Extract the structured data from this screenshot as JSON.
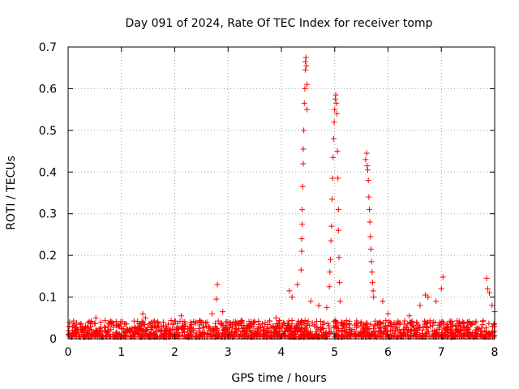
{
  "chart_data": {
    "type": "scatter",
    "title": "Day 091 of 2024, Rate Of TEC Index for receiver tomp",
    "xlabel": "GPS time / hours",
    "ylabel": "ROTI / TECUs",
    "xlim": [
      0,
      8
    ],
    "ylim": [
      0,
      0.7
    ],
    "grid": true,
    "x_ticks": [
      0,
      1,
      2,
      3,
      4,
      5,
      6,
      7,
      8
    ],
    "x_tick_labels": [
      "0",
      "1",
      "2",
      "3",
      "4",
      "5",
      "6",
      "7",
      "8"
    ],
    "y_ticks": [
      0,
      0.1,
      0.2,
      0.3,
      0.4,
      0.5,
      0.6,
      0.7
    ],
    "y_tick_labels": [
      "0",
      "0.1",
      "0.2",
      "0.3",
      "0.4",
      "0.5",
      "0.6",
      "0.7"
    ],
    "marker": "+",
    "marker_color": "#ff0000",
    "background_band": {
      "description": "dense cluster of low ROTI values across the whole day",
      "x_range": [
        0,
        8
      ],
      "typical_max": 0.04
    },
    "series": [
      {
        "name": "ROTI",
        "points": [
          [
            0.02,
            0.03
          ],
          [
            0.08,
            0.02
          ],
          [
            0.15,
            0.025
          ],
          [
            0.3,
            0.015
          ],
          [
            0.52,
            0.05
          ],
          [
            0.6,
            0.02
          ],
          [
            0.9,
            0.015
          ],
          [
            1.2,
            0.025
          ],
          [
            1.4,
            0.06
          ],
          [
            1.45,
            0.05
          ],
          [
            1.7,
            0.03
          ],
          [
            2.12,
            0.055
          ],
          [
            2.5,
            0.04
          ],
          [
            2.7,
            0.06
          ],
          [
            2.78,
            0.095
          ],
          [
            2.8,
            0.13
          ],
          [
            2.9,
            0.065
          ],
          [
            3.1,
            0.04
          ],
          [
            3.5,
            0.04
          ],
          [
            3.9,
            0.05
          ],
          [
            4.15,
            0.115
          ],
          [
            4.2,
            0.1
          ],
          [
            4.3,
            0.13
          ],
          [
            4.37,
            0.165
          ],
          [
            4.38,
            0.21
          ],
          [
            4.38,
            0.24
          ],
          [
            4.39,
            0.275
          ],
          [
            4.39,
            0.31
          ],
          [
            4.4,
            0.365
          ],
          [
            4.41,
            0.42
          ],
          [
            4.41,
            0.455
          ],
          [
            4.42,
            0.5
          ],
          [
            4.43,
            0.565
          ],
          [
            4.44,
            0.6
          ],
          [
            4.45,
            0.645
          ],
          [
            4.45,
            0.665
          ],
          [
            4.46,
            0.675
          ],
          [
            4.47,
            0.655
          ],
          [
            4.48,
            0.61
          ],
          [
            4.48,
            0.55
          ],
          [
            4.55,
            0.09
          ],
          [
            4.7,
            0.08
          ],
          [
            4.85,
            0.075
          ],
          [
            4.9,
            0.125
          ],
          [
            4.91,
            0.16
          ],
          [
            4.92,
            0.19
          ],
          [
            4.93,
            0.235
          ],
          [
            4.94,
            0.27
          ],
          [
            4.95,
            0.335
          ],
          [
            4.96,
            0.385
          ],
          [
            4.97,
            0.435
          ],
          [
            4.98,
            0.48
          ],
          [
            4.99,
            0.52
          ],
          [
            5.0,
            0.55
          ],
          [
            5.01,
            0.575
          ],
          [
            5.02,
            0.585
          ],
          [
            5.03,
            0.565
          ],
          [
            5.04,
            0.54
          ],
          [
            5.05,
            0.45
          ],
          [
            5.06,
            0.385
          ],
          [
            5.07,
            0.31
          ],
          [
            5.07,
            0.26
          ],
          [
            5.08,
            0.195
          ],
          [
            5.09,
            0.135
          ],
          [
            5.1,
            0.09
          ],
          [
            5.5,
            0.04
          ],
          [
            5.58,
            0.43
          ],
          [
            5.6,
            0.445
          ],
          [
            5.61,
            0.415
          ],
          [
            5.62,
            0.405
          ],
          [
            5.63,
            0.38
          ],
          [
            5.64,
            0.34
          ],
          [
            5.65,
            0.31
          ],
          [
            5.66,
            0.28
          ],
          [
            5.67,
            0.245
          ],
          [
            5.68,
            0.215
          ],
          [
            5.69,
            0.185
          ],
          [
            5.7,
            0.16
          ],
          [
            5.71,
            0.135
          ],
          [
            5.72,
            0.115
          ],
          [
            5.73,
            0.1
          ],
          [
            5.9,
            0.09
          ],
          [
            6.0,
            0.06
          ],
          [
            6.3,
            0.035
          ],
          [
            6.4,
            0.055
          ],
          [
            6.6,
            0.08
          ],
          [
            6.7,
            0.105
          ],
          [
            6.75,
            0.1
          ],
          [
            6.9,
            0.09
          ],
          [
            7.0,
            0.12
          ],
          [
            7.03,
            0.148
          ],
          [
            7.2,
            0.03
          ],
          [
            7.5,
            0.025
          ],
          [
            7.85,
            0.145
          ],
          [
            7.87,
            0.12
          ],
          [
            7.9,
            0.11
          ],
          [
            7.95,
            0.08
          ],
          [
            8.0,
            0.065
          ]
        ]
      }
    ]
  }
}
